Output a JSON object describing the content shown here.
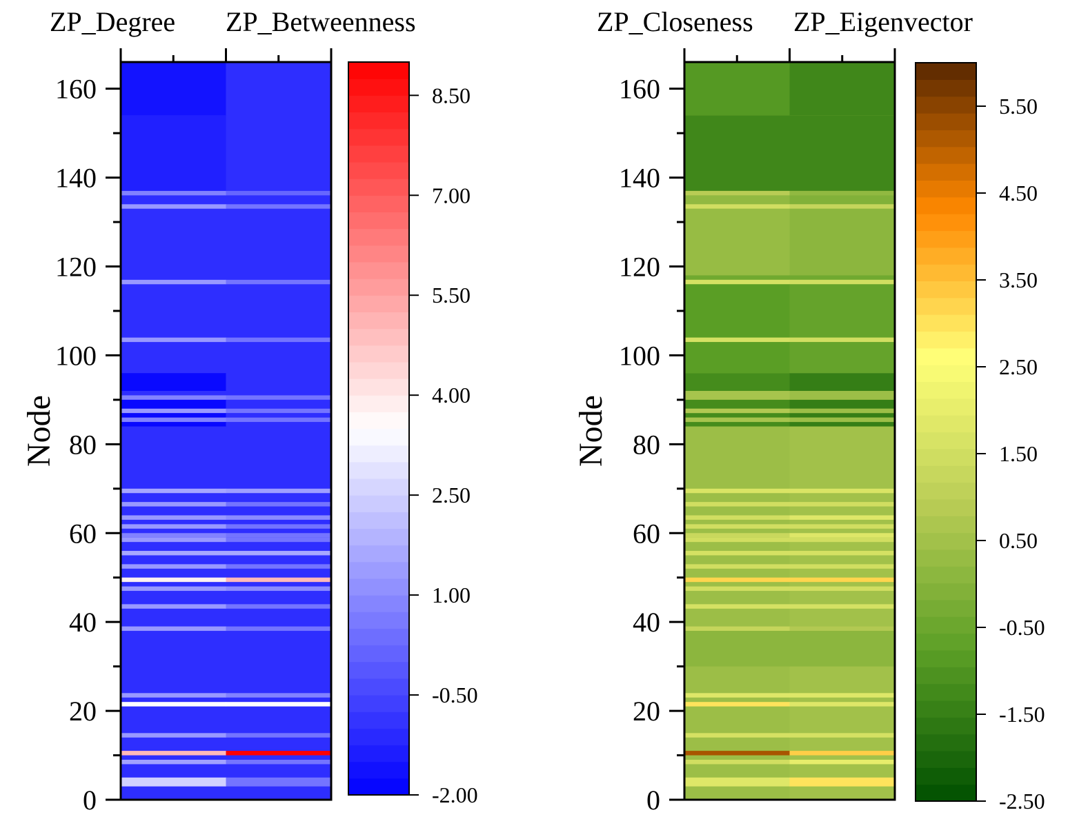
{
  "chart_data": [
    {
      "type": "heatmap",
      "columns": [
        "ZP_Degree",
        "ZP_Betweenness"
      ],
      "ylabel": "Node",
      "ylim": [
        0,
        166
      ],
      "yticks": [
        0,
        20,
        40,
        60,
        80,
        100,
        120,
        140,
        160
      ],
      "colorbar": {
        "range": [
          -2.0,
          9.0
        ],
        "ticks": [
          "-2.00",
          "-0.50",
          "1.00",
          "2.50",
          "4.00",
          "5.50",
          "7.00",
          "8.50"
        ],
        "colors": [
          "#0000ff",
          "#ffffff",
          "#ff0000"
        ]
      },
      "baseline": [
        -1.0,
        -1.0
      ],
      "bands": [
        {
          "nodes": [
            154,
            166
          ],
          "values": [
            -1.6,
            -1.0
          ]
        },
        {
          "nodes": [
            137,
            154
          ],
          "values": [
            -1.3,
            -1.0
          ]
        },
        {
          "nodes": [
            136,
            137
          ],
          "values": [
            0.8,
            0.2
          ]
        },
        {
          "nodes": [
            133,
            134
          ],
          "values": [
            1.3,
            0.5
          ]
        },
        {
          "nodes": [
            116,
            117
          ],
          "values": [
            1.3,
            0.5
          ]
        },
        {
          "nodes": [
            103,
            104
          ],
          "values": [
            1.3,
            0.5
          ]
        },
        {
          "nodes": [
            92,
            96
          ],
          "values": [
            -1.8,
            -1.0
          ]
        },
        {
          "nodes": [
            90,
            91
          ],
          "values": [
            0.8,
            0.5
          ]
        },
        {
          "nodes": [
            88,
            90
          ],
          "values": [
            -1.8,
            -1.0
          ]
        },
        {
          "nodes": [
            87,
            88
          ],
          "values": [
            1.3,
            0.5
          ]
        },
        {
          "nodes": [
            86,
            87
          ],
          "values": [
            -1.8,
            -1.0
          ]
        },
        {
          "nodes": [
            85,
            86
          ],
          "values": [
            0.8,
            0.5
          ]
        },
        {
          "nodes": [
            84,
            85
          ],
          "values": [
            -1.8,
            -1.0
          ]
        },
        {
          "nodes": [
            69,
            70
          ],
          "values": [
            1.6,
            1.4
          ]
        },
        {
          "nodes": [
            66,
            67
          ],
          "values": [
            1.3,
            0.5
          ]
        },
        {
          "nodes": [
            63,
            64
          ],
          "values": [
            1.3,
            1.0
          ]
        },
        {
          "nodes": [
            61,
            62
          ],
          "values": [
            1.3,
            0.5
          ]
        },
        {
          "nodes": [
            59,
            60
          ],
          "values": [
            0.8,
            0.5
          ]
        },
        {
          "nodes": [
            58,
            59
          ],
          "values": [
            1.3,
            0.5
          ]
        },
        {
          "nodes": [
            55,
            56
          ],
          "values": [
            1.6,
            1.6
          ]
        },
        {
          "nodes": [
            52,
            53
          ],
          "values": [
            1.3,
            0.5
          ]
        },
        {
          "nodes": [
            49,
            50
          ],
          "values": [
            3.8,
            5.0
          ]
        },
        {
          "nodes": [
            47,
            48
          ],
          "values": [
            1.3,
            1.0
          ]
        },
        {
          "nodes": [
            43,
            44
          ],
          "values": [
            1.3,
            0.5
          ]
        },
        {
          "nodes": [
            38,
            39
          ],
          "values": [
            1.3,
            0.5
          ]
        },
        {
          "nodes": [
            23,
            24
          ],
          "values": [
            1.3,
            0.8
          ]
        },
        {
          "nodes": [
            21,
            22
          ],
          "values": [
            3.5,
            3.5
          ]
        },
        {
          "nodes": [
            14,
            15
          ],
          "values": [
            1.3,
            0.5
          ]
        },
        {
          "nodes": [
            10,
            11
          ],
          "values": [
            5.0,
            9.0
          ]
        },
        {
          "nodes": [
            8,
            9
          ],
          "values": [
            1.5,
            0.5
          ]
        },
        {
          "nodes": [
            3,
            5
          ],
          "values": [
            2.5,
            0.5
          ]
        }
      ]
    },
    {
      "type": "heatmap",
      "columns": [
        "ZP_Closeness",
        "ZP_Eigenvector"
      ],
      "ylabel": "Node",
      "ylim": [
        0,
        166
      ],
      "yticks": [
        0,
        20,
        40,
        60,
        80,
        100,
        120,
        140,
        160
      ],
      "colorbar": {
        "range": [
          -2.5,
          6.0
        ],
        "ticks": [
          "-2.50",
          "-1.50",
          "-0.50",
          "0.50",
          "1.50",
          "2.50",
          "3.50",
          "4.50",
          "5.50"
        ],
        "colors": [
          "#005000",
          "#5a9e25",
          "#b8cc55",
          "#ffff78",
          "#ff8800",
          "#5a2800"
        ]
      },
      "baseline": [
        0.4,
        0.5
      ],
      "bands": [
        {
          "nodes": [
            154,
            166
          ],
          "values": [
            -0.9,
            -1.3
          ]
        },
        {
          "nodes": [
            137,
            154
          ],
          "values": [
            -1.3,
            -1.3
          ]
        },
        {
          "nodes": [
            136,
            137
          ],
          "values": [
            0.9,
            0.2
          ]
        },
        {
          "nodes": [
            134,
            136
          ],
          "values": [
            0.2,
            -0.1
          ]
        },
        {
          "nodes": [
            133,
            134
          ],
          "values": [
            1.5,
            1.2
          ]
        },
        {
          "nodes": [
            118,
            133
          ],
          "values": [
            0.3,
            0.1
          ]
        },
        {
          "nodes": [
            117,
            118
          ],
          "values": [
            -0.4,
            -0.4
          ]
        },
        {
          "nodes": [
            116,
            117
          ],
          "values": [
            1.6,
            1.5
          ]
        },
        {
          "nodes": [
            104,
            116
          ],
          "values": [
            -0.8,
            -0.6
          ]
        },
        {
          "nodes": [
            103,
            104
          ],
          "values": [
            1.6,
            1.5
          ]
        },
        {
          "nodes": [
            96,
            103
          ],
          "values": [
            -0.8,
            -0.6
          ]
        },
        {
          "nodes": [
            92,
            96
          ],
          "values": [
            -1.2,
            -1.5
          ]
        },
        {
          "nodes": [
            90,
            92
          ],
          "values": [
            0.6,
            0.4
          ]
        },
        {
          "nodes": [
            88,
            90
          ],
          "values": [
            -1.2,
            -1.5
          ]
        },
        {
          "nodes": [
            87,
            88
          ],
          "values": [
            0.8,
            0.4
          ]
        },
        {
          "nodes": [
            86,
            87
          ],
          "values": [
            -1.2,
            -1.5
          ]
        },
        {
          "nodes": [
            85,
            86
          ],
          "values": [
            0.6,
            0.4
          ]
        },
        {
          "nodes": [
            84,
            85
          ],
          "values": [
            -1.2,
            -1.5
          ]
        },
        {
          "nodes": [
            69,
            70
          ],
          "values": [
            1.7,
            1.7
          ]
        },
        {
          "nodes": [
            66,
            67
          ],
          "values": [
            1.5,
            1.5
          ]
        },
        {
          "nodes": [
            63,
            64
          ],
          "values": [
            1.5,
            1.8
          ]
        },
        {
          "nodes": [
            61,
            62
          ],
          "values": [
            1.5,
            1.5
          ]
        },
        {
          "nodes": [
            59,
            60
          ],
          "values": [
            1.3,
            1.8
          ]
        },
        {
          "nodes": [
            58,
            59
          ],
          "values": [
            1.5,
            1.5
          ]
        },
        {
          "nodes": [
            55,
            56
          ],
          "values": [
            1.6,
            1.6
          ]
        },
        {
          "nodes": [
            52,
            53
          ],
          "values": [
            1.5,
            1.5
          ]
        },
        {
          "nodes": [
            49,
            50
          ],
          "values": [
            3.2,
            3.2
          ]
        },
        {
          "nodes": [
            47,
            48
          ],
          "values": [
            1.5,
            1.5
          ]
        },
        {
          "nodes": [
            43,
            44
          ],
          "values": [
            1.6,
            1.6
          ]
        },
        {
          "nodes": [
            38,
            39
          ],
          "values": [
            1.2,
            0.8
          ]
        },
        {
          "nodes": [
            30,
            38
          ],
          "values": [
            0.1,
            0.1
          ]
        },
        {
          "nodes": [
            23,
            24
          ],
          "values": [
            1.8,
            1.8
          ]
        },
        {
          "nodes": [
            21,
            22
          ],
          "values": [
            3.0,
            1.8
          ]
        },
        {
          "nodes": [
            14,
            15
          ],
          "values": [
            1.6,
            1.6
          ]
        },
        {
          "nodes": [
            10,
            11
          ],
          "values": [
            5.2,
            3.3
          ]
        },
        {
          "nodes": [
            8,
            9
          ],
          "values": [
            1.5,
            2.0
          ]
        },
        {
          "nodes": [
            3,
            5
          ],
          "values": [
            1.8,
            3.0
          ]
        }
      ]
    }
  ]
}
